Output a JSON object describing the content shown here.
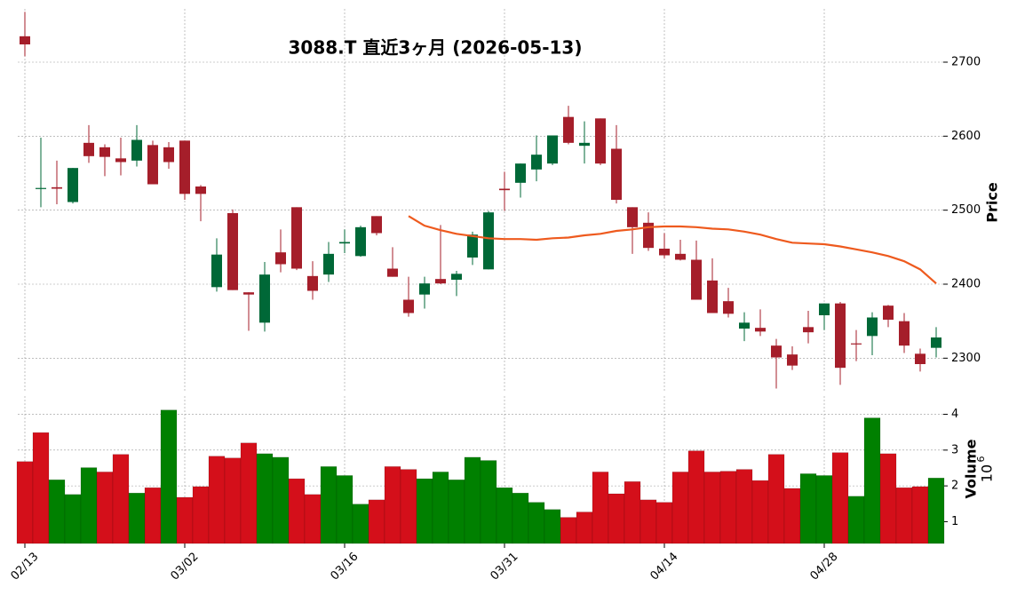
{
  "chart_data": {
    "type": "candlestick",
    "title": "3088.T  直近3ヶ月 (2026-05-13)",
    "categories": [
      "02/13",
      null,
      null,
      null,
      null,
      null,
      null,
      null,
      null,
      null,
      "03/02",
      null,
      null,
      null,
      null,
      null,
      null,
      null,
      null,
      null,
      "03/16",
      null,
      null,
      null,
      null,
      null,
      null,
      null,
      null,
      null,
      "03/31",
      null,
      null,
      null,
      null,
      null,
      null,
      null,
      null,
      null,
      "04/14",
      null,
      null,
      null,
      null,
      null,
      null,
      null,
      null,
      null,
      "04/28",
      null,
      null,
      null,
      null,
      null,
      null,
      null
    ],
    "open": [
      2735,
      2529,
      2531,
      2511,
      2591,
      2585,
      2570,
      2567,
      2588,
      2585,
      2594,
      2532,
      2396,
      2496,
      2389,
      2348,
      2443,
      2504,
      2411,
      2413,
      2455,
      2438,
      2492,
      2421,
      2379,
      2386,
      2407,
      2406,
      2436,
      2420,
      2529,
      2537,
      2555,
      2563,
      2626,
      2587,
      2624,
      2583,
      2504,
      2483,
      2448,
      2441,
      2433,
      2405,
      2377,
      2340,
      2341,
      2317,
      2305,
      2342,
      2358,
      2374,
      2320,
      2330,
      2371,
      2350,
      2306,
      2314
    ],
    "high": [
      2768,
      2598,
      2567,
      2557,
      2615,
      2589,
      2598,
      2615,
      2594,
      2592,
      2594,
      2534,
      2462,
      2501,
      2389,
      2430,
      2474,
      2504,
      2431,
      2457,
      2474,
      2479,
      2492,
      2450,
      2410,
      2410,
      2480,
      2418,
      2471,
      2499,
      2552,
      2563,
      2601,
      2601,
      2641,
      2620,
      2624,
      2615,
      2504,
      2497,
      2469,
      2460,
      2459,
      2435,
      2395,
      2362,
      2366,
      2326,
      2316,
      2364,
      2374,
      2376,
      2338,
      2362,
      2372,
      2361,
      2313,
      2342
    ],
    "low": [
      2708,
      2504,
      2508,
      2509,
      2564,
      2546,
      2547,
      2559,
      2535,
      2556,
      2514,
      2485,
      2390,
      2392,
      2337,
      2336,
      2416,
      2419,
      2379,
      2403,
      2442,
      2437,
      2466,
      2410,
      2356,
      2367,
      2400,
      2384,
      2426,
      2420,
      2499,
      2517,
      2539,
      2561,
      2589,
      2563,
      2561,
      2509,
      2441,
      2445,
      2435,
      2432,
      2379,
      2361,
      2355,
      2323,
      2330,
      2259,
      2284,
      2320,
      2338,
      2264,
      2296,
      2304,
      2342,
      2307,
      2282,
      2301
    ],
    "close": [
      2724,
      2530,
      2529,
      2557,
      2573,
      2572,
      2565,
      2595,
      2535,
      2565,
      2522,
      2522,
      2440,
      2392,
      2386,
      2413,
      2427,
      2421,
      2391,
      2441,
      2457,
      2477,
      2469,
      2410,
      2361,
      2401,
      2401,
      2414,
      2467,
      2497,
      2527,
      2563,
      2575,
      2601,
      2591,
      2591,
      2563,
      2514,
      2477,
      2449,
      2439,
      2433,
      2379,
      2361,
      2360,
      2348,
      2336,
      2301,
      2290,
      2335,
      2374,
      2287,
      2319,
      2355,
      2352,
      2317,
      2292,
      2328
    ],
    "up_color": "#006837",
    "down_color": "#a51e2a",
    "ma": {
      "color": "#ee5a1e",
      "values": [
        null,
        null,
        null,
        null,
        null,
        null,
        null,
        null,
        null,
        null,
        null,
        null,
        null,
        null,
        null,
        null,
        null,
        null,
        null,
        null,
        null,
        null,
        null,
        null,
        2492,
        2479,
        2473,
        2468,
        2465,
        2462,
        2461,
        2461,
        2460,
        2462,
        2463,
        2466,
        2468,
        2472,
        2474,
        2477,
        2478,
        2478,
        2477,
        2475,
        2474,
        2471,
        2467,
        2461,
        2456,
        2455,
        2454,
        2451,
        2447,
        2443,
        2438,
        2431,
        2420,
        2401
      ]
    },
    "ylabel": "Price",
    "ylim": [
      2256,
      2772
    ],
    "yticks": [
      2300,
      2400,
      2500,
      2600,
      2700
    ],
    "grid": true,
    "volume": {
      "ylabel": "Volume",
      "offset_base": "10",
      "offset_exponent": "6",
      "values": [
        2.68,
        3.49,
        2.17,
        1.76,
        2.51,
        2.39,
        2.88,
        1.8,
        1.95,
        4.12,
        1.68,
        1.98,
        2.83,
        2.78,
        3.2,
        2.9,
        2.8,
        2.2,
        1.76,
        2.54,
        2.29,
        1.49,
        1.61,
        2.54,
        2.46,
        2.2,
        2.39,
        2.17,
        2.8,
        2.71,
        1.95,
        1.8,
        1.54,
        1.34,
        1.12,
        1.27,
        2.39,
        1.78,
        2.12,
        1.61,
        1.54,
        2.39,
        2.98,
        2.39,
        2.41,
        2.46,
        2.15,
        2.88,
        1.93,
        2.34,
        2.29,
        2.93,
        1.71,
        3.9,
        2.9,
        1.95,
        1.98,
        2.22
      ],
      "colors": [
        "#d40f1a",
        "#d40f1a",
        "#008000",
        "#008000",
        "#008000",
        "#d40f1a",
        "#d40f1a",
        "#008000",
        "#d40f1a",
        "#008000",
        "#d40f1a",
        "#d40f1a",
        "#d40f1a",
        "#d40f1a",
        "#d40f1a",
        "#008000",
        "#008000",
        "#d40f1a",
        "#d40f1a",
        "#008000",
        "#008000",
        "#008000",
        "#d40f1a",
        "#d40f1a",
        "#d40f1a",
        "#008000",
        "#008000",
        "#008000",
        "#008000",
        "#008000",
        "#008000",
        "#008000",
        "#008000",
        "#008000",
        "#d40f1a",
        "#d40f1a",
        "#d40f1a",
        "#d40f1a",
        "#d40f1a",
        "#d40f1a",
        "#d40f1a",
        "#d40f1a",
        "#d40f1a",
        "#d40f1a",
        "#d40f1a",
        "#d40f1a",
        "#d40f1a",
        "#d40f1a",
        "#d40f1a",
        "#008000",
        "#008000",
        "#d40f1a",
        "#008000",
        "#008000",
        "#d40f1a",
        "#d40f1a",
        "#d40f1a",
        "#008000"
      ],
      "ylim": [
        0.39,
        4.51
      ],
      "yticks": [
        1,
        2,
        3,
        4
      ]
    }
  }
}
